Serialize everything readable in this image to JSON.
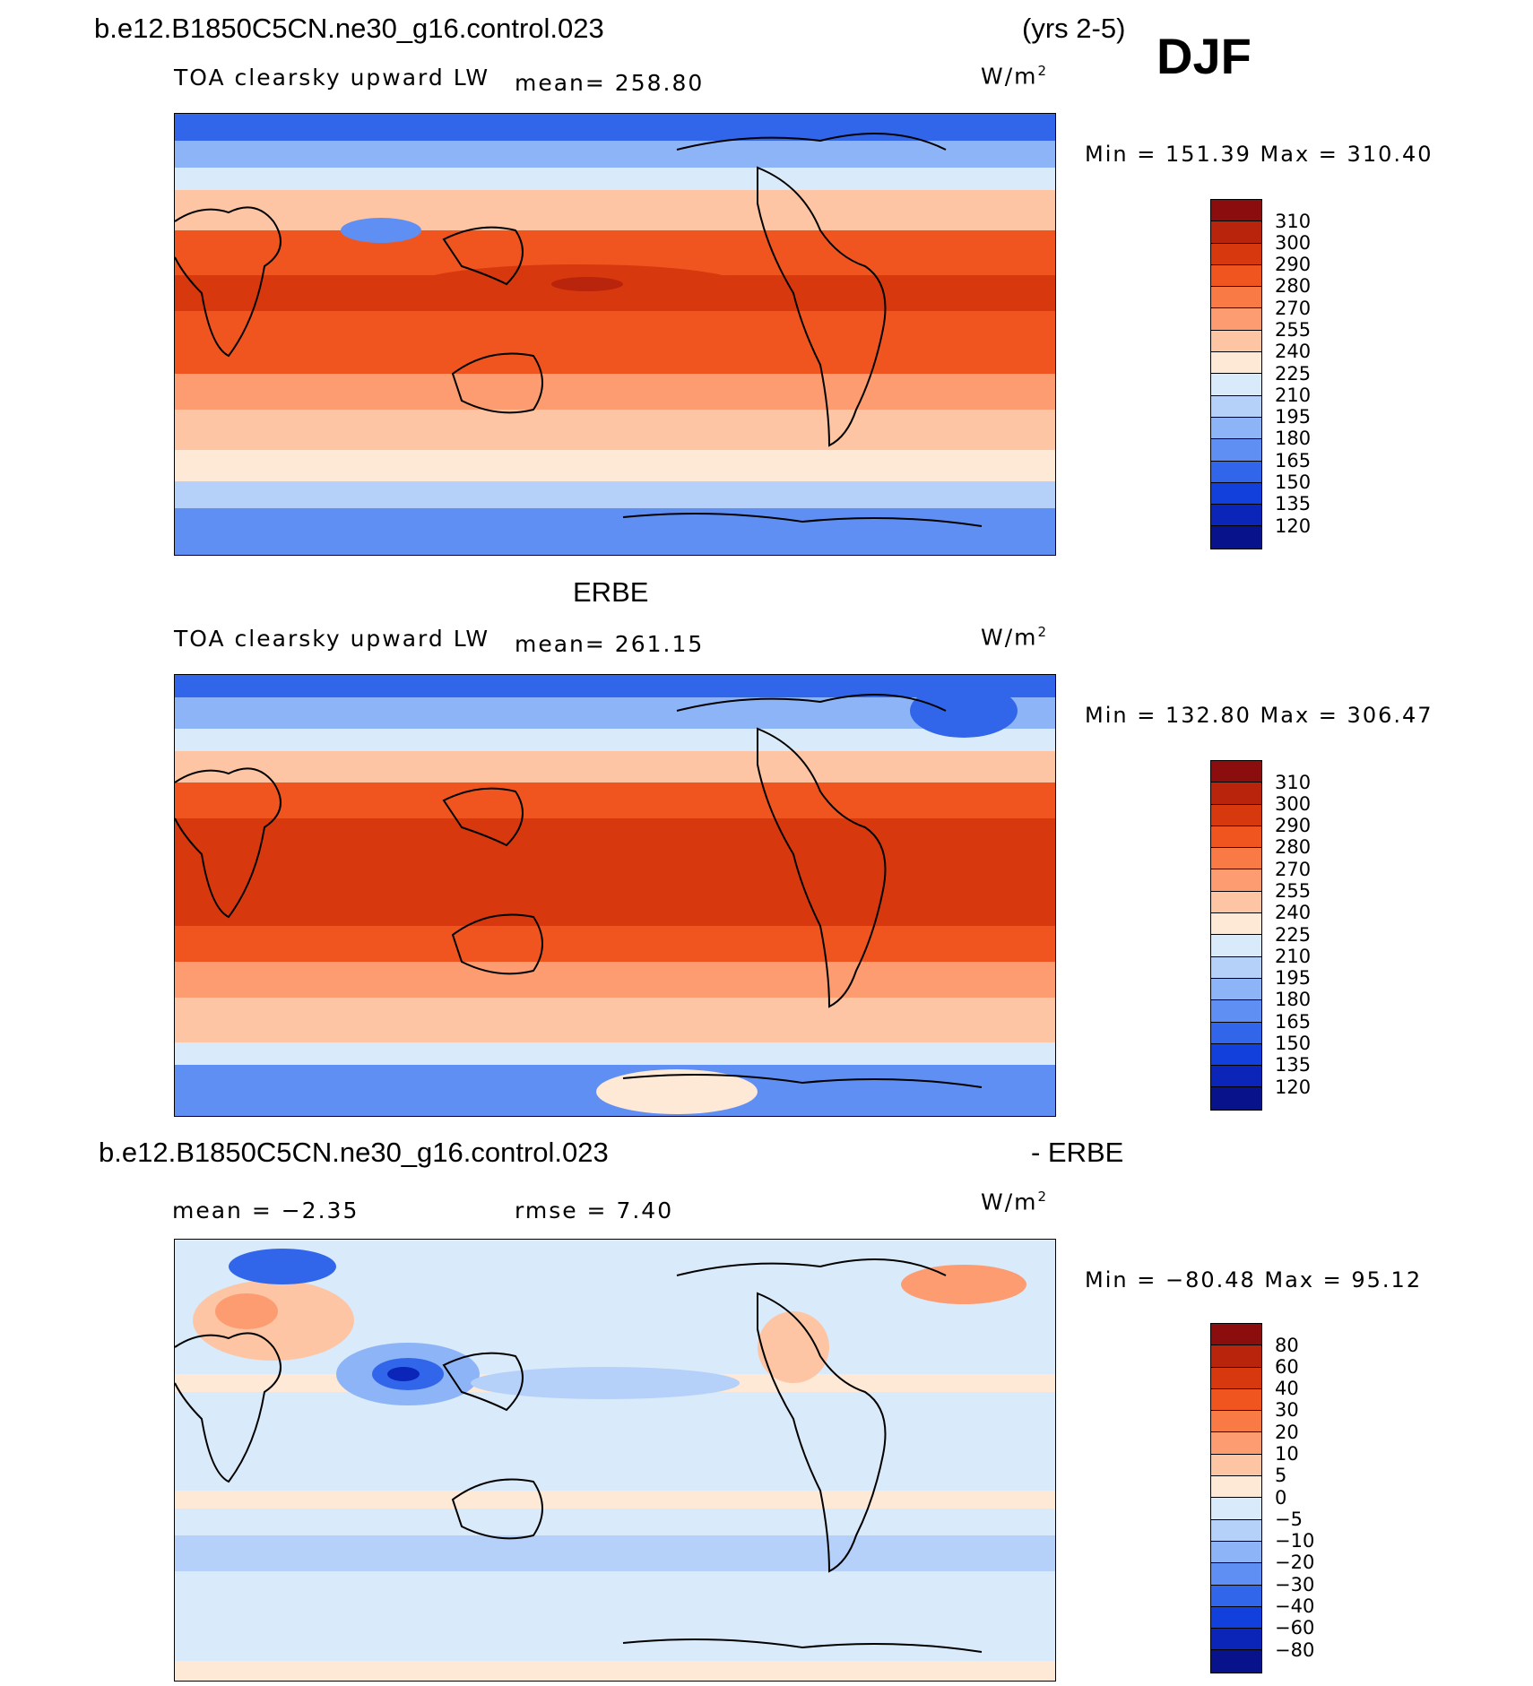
{
  "header": {
    "case_name": "b.e12.B1850C5CN.ne30_g16.control.023",
    "years": "(yrs 2-5)",
    "season": "DJF"
  },
  "panels": [
    {
      "id": "model",
      "title": "",
      "variable": "TOA clearsky upward LW",
      "stat_text": "mean=  258.80",
      "units": "W/m",
      "minmax": "Min  =  151.39  Max  =  310.40"
    },
    {
      "id": "obs",
      "title": "ERBE",
      "variable": "TOA clearsky upward LW",
      "stat_text": "mean=  261.15",
      "units": "W/m",
      "minmax": "Min  =  132.80  Max  =  306.47"
    },
    {
      "id": "diff",
      "title_left": "b.e12.B1850C5CN.ne30_g16.control.023",
      "title_right": "- ERBE",
      "stat_mean": "mean  =    −2.35",
      "stat_rmse": "rmse  =     7.40",
      "units": "W/m",
      "minmax": "Min  =  −80.48  Max  =    95.12"
    }
  ],
  "units_exp": "2",
  "colorbar_abs": {
    "labels": [
      "310",
      "300",
      "290",
      "280",
      "270",
      "255",
      "240",
      "225",
      "210",
      "195",
      "180",
      "165",
      "150",
      "135",
      "120"
    ],
    "colors": [
      "#8b0d0d",
      "#b9240d",
      "#d8380d",
      "#f05520",
      "#fa7a45",
      "#fc9c70",
      "#fdc5a4",
      "#fee8d6",
      "#d9eafa",
      "#b5d1f9",
      "#8db4f6",
      "#5f8ff2",
      "#3266ea",
      "#1240dc",
      "#0a25b8",
      "#08128a"
    ]
  },
  "colorbar_diff": {
    "labels": [
      "80",
      "60",
      "40",
      "30",
      "20",
      "10",
      "5",
      "0",
      "−5",
      "−10",
      "−20",
      "−30",
      "−40",
      "−60",
      "−80"
    ],
    "colors": [
      "#8b0d0d",
      "#b9240d",
      "#d8380d",
      "#f05520",
      "#fa7a45",
      "#fc9c70",
      "#fdc5a4",
      "#fee8d6",
      "#d9eafa",
      "#b5d1f9",
      "#8db4f6",
      "#5f8ff2",
      "#3266ea",
      "#1240dc",
      "#0a25b8",
      "#08128a"
    ]
  }
}
